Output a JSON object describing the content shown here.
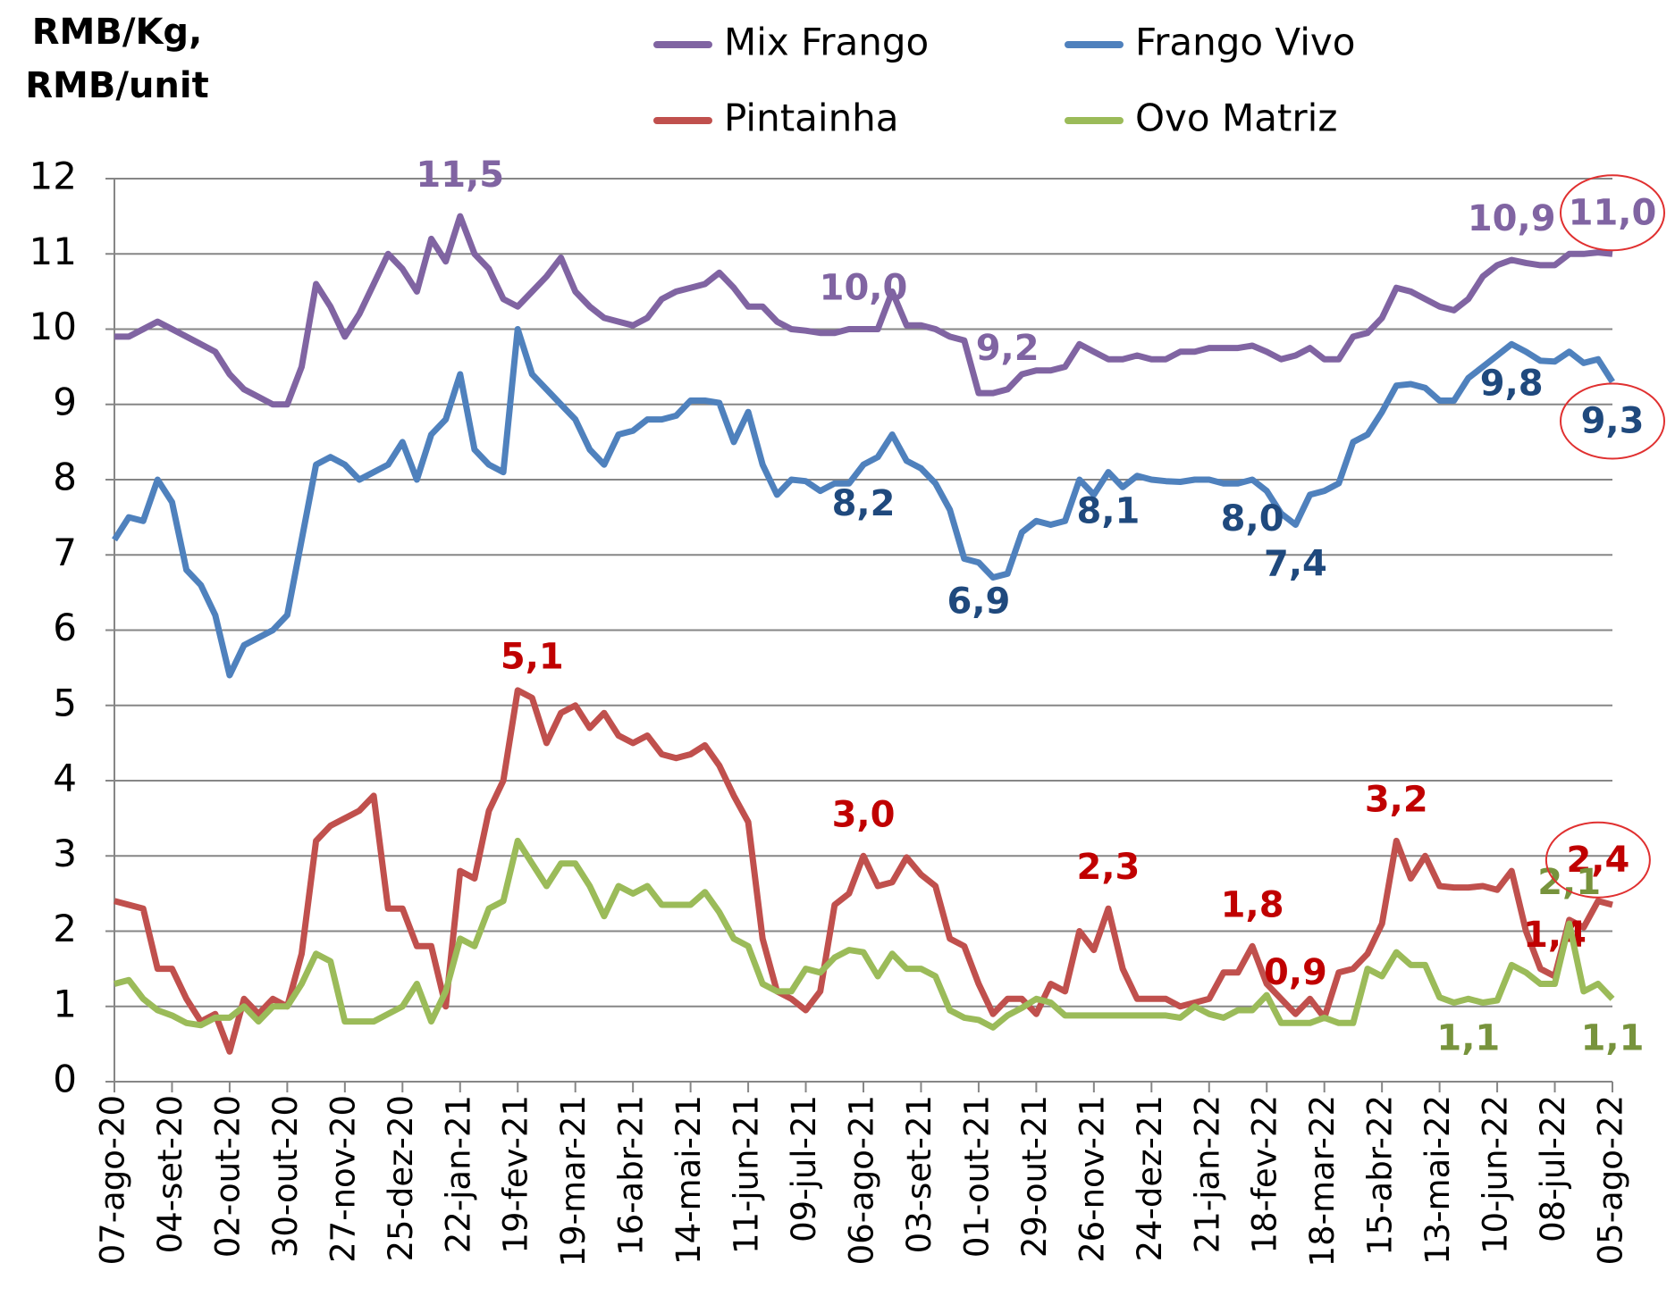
{
  "chart_data": {
    "type": "line",
    "ylabel_lines": [
      "RMB/Kg,",
      "RMB/unit"
    ],
    "ylim": [
      0,
      12
    ],
    "yticks": [
      0,
      1,
      2,
      3,
      4,
      5,
      6,
      7,
      8,
      9,
      10,
      11,
      12
    ],
    "grid": true,
    "categories": [
      "07-ago-20",
      null,
      null,
      null,
      "04-set-20",
      null,
      null,
      null,
      "02-out-20",
      null,
      null,
      null,
      "30-out-20",
      null,
      null,
      null,
      "27-nov-20",
      null,
      null,
      null,
      "25-dez-20",
      null,
      null,
      null,
      "22-jan-21",
      null,
      null,
      null,
      "19-fev-21",
      null,
      null,
      null,
      "19-mar-21",
      null,
      null,
      null,
      "16-abr-21",
      null,
      null,
      null,
      "14-mai-21",
      null,
      null,
      null,
      "11-jun-21",
      null,
      null,
      null,
      "09-jul-21",
      null,
      null,
      null,
      "06-ago-21",
      null,
      null,
      null,
      "03-set-21",
      null,
      null,
      null,
      "01-out-21",
      null,
      null,
      null,
      "29-out-21",
      null,
      null,
      null,
      "26-nov-21",
      null,
      null,
      null,
      "24-dez-21",
      null,
      null,
      null,
      "21-jan-22",
      null,
      null,
      null,
      "18-fev-22",
      null,
      null,
      null,
      "18-mar-22",
      null,
      null,
      null,
      "15-abr-22",
      null,
      null,
      null,
      "13-mai-22",
      null,
      null,
      null,
      "10-jun-22",
      null,
      null,
      null,
      "08-jul-22",
      null,
      null,
      null,
      "05-ago-22"
    ],
    "series": [
      {
        "name": "Mix Frango",
        "color": "#8064a2",
        "label_color": "#8064a2",
        "values": [
          9.9,
          9.9,
          10.0,
          10.1,
          10.0,
          9.9,
          9.8,
          9.7,
          9.4,
          9.2,
          9.1,
          9.0,
          9.0,
          9.5,
          10.6,
          10.3,
          9.9,
          10.2,
          10.6,
          11.0,
          10.8,
          10.5,
          11.2,
          10.9,
          11.5,
          11.0,
          10.8,
          10.4,
          10.3,
          10.5,
          10.7,
          10.95,
          10.5,
          10.3,
          10.15,
          10.1,
          10.05,
          10.15,
          10.4,
          10.5,
          10.55,
          10.6,
          10.75,
          10.55,
          10.3,
          10.3,
          10.1,
          10.0,
          9.98,
          9.95,
          9.95,
          10.0,
          10.0,
          10.0,
          10.5,
          10.05,
          10.05,
          10.0,
          9.9,
          9.85,
          9.15,
          9.15,
          9.2,
          9.4,
          9.45,
          9.45,
          9.5,
          9.8,
          9.7,
          9.6,
          9.6,
          9.65,
          9.6,
          9.6,
          9.7,
          9.7,
          9.75,
          9.75,
          9.75,
          9.78,
          9.7,
          9.6,
          9.65,
          9.75,
          9.6,
          9.6,
          9.9,
          9.95,
          10.15,
          10.55,
          10.5,
          10.4,
          10.3,
          10.25,
          10.4,
          10.7,
          10.85,
          10.92,
          10.88,
          10.85,
          10.85,
          11.0,
          11.0,
          11.02,
          11.0
        ],
        "value_labels": [
          null,
          null,
          null,
          null,
          null,
          null,
          null,
          null,
          null,
          null,
          null,
          null,
          null,
          null,
          null,
          null,
          null,
          null,
          null,
          null,
          null,
          null,
          null,
          null,
          "11,5",
          null,
          null,
          null,
          null,
          null,
          null,
          null,
          null,
          null,
          null,
          null,
          null,
          null,
          null,
          null,
          null,
          null,
          null,
          null,
          null,
          null,
          null,
          null,
          null,
          null,
          null,
          null,
          "10,0",
          null,
          null,
          null,
          null,
          null,
          null,
          null,
          null,
          null,
          "9,2",
          null,
          null,
          null,
          null,
          null,
          null,
          null,
          null,
          null,
          null,
          null,
          null,
          null,
          null,
          null,
          null,
          null,
          null,
          null,
          null,
          null,
          null,
          null,
          null,
          null,
          null,
          null,
          null,
          null,
          null,
          null,
          null,
          null,
          null,
          "10,9",
          null,
          null,
          null,
          null,
          null,
          null,
          "11,0"
        ]
      },
      {
        "name": "Frango Vivo",
        "color": "#4f81bd",
        "label_color": "#1f497d",
        "values": [
          7.2,
          7.5,
          7.45,
          8.0,
          7.7,
          6.8,
          6.6,
          6.2,
          5.4,
          5.8,
          5.9,
          6.0,
          6.2,
          7.2,
          8.2,
          8.3,
          8.2,
          8.0,
          8.1,
          8.2,
          8.5,
          8.0,
          8.6,
          8.8,
          9.4,
          8.4,
          8.2,
          8.1,
          10.0,
          9.4,
          9.2,
          9.0,
          8.8,
          8.4,
          8.2,
          8.6,
          8.65,
          8.8,
          8.8,
          8.85,
          9.05,
          9.05,
          9.02,
          8.5,
          8.9,
          8.2,
          7.8,
          8.0,
          7.98,
          7.85,
          7.95,
          7.95,
          8.2,
          8.3,
          8.6,
          8.25,
          8.15,
          7.95,
          7.6,
          6.95,
          6.9,
          6.7,
          6.75,
          7.3,
          7.45,
          7.4,
          7.45,
          8.0,
          7.8,
          8.1,
          7.9,
          8.05,
          8.0,
          7.98,
          7.97,
          8.0,
          8.0,
          7.95,
          7.95,
          8.0,
          7.85,
          7.55,
          7.4,
          7.8,
          7.85,
          7.95,
          8.5,
          8.6,
          8.9,
          9.25,
          9.27,
          9.22,
          9.05,
          9.05,
          9.35,
          9.5,
          9.65,
          9.8,
          9.7,
          9.58,
          9.57,
          9.7,
          9.55,
          9.6,
          9.3
        ],
        "value_labels": [
          null,
          null,
          null,
          null,
          null,
          null,
          null,
          null,
          null,
          null,
          null,
          null,
          null,
          null,
          null,
          null,
          null,
          null,
          null,
          null,
          null,
          null,
          null,
          null,
          null,
          null,
          null,
          null,
          null,
          null,
          null,
          null,
          null,
          null,
          null,
          null,
          null,
          null,
          null,
          null,
          null,
          null,
          null,
          null,
          null,
          null,
          null,
          null,
          null,
          null,
          null,
          null,
          "8,2",
          null,
          null,
          null,
          null,
          null,
          null,
          null,
          "6,9",
          null,
          null,
          null,
          null,
          null,
          null,
          null,
          null,
          "8,1",
          null,
          null,
          null,
          null,
          null,
          null,
          null,
          null,
          null,
          "8,0",
          null,
          null,
          "7,4",
          null,
          null,
          null,
          null,
          null,
          null,
          null,
          null,
          null,
          null,
          null,
          null,
          null,
          null,
          "9,8",
          null,
          null,
          null,
          null,
          null,
          null,
          "9,3"
        ]
      },
      {
        "name": "Pintainha",
        "color": "#c0504d",
        "label_color": "#c00000",
        "values": [
          2.4,
          2.35,
          2.3,
          1.5,
          1.5,
          1.1,
          0.8,
          0.9,
          0.4,
          1.1,
          0.9,
          1.1,
          1.0,
          1.7,
          3.2,
          3.4,
          3.5,
          3.6,
          3.8,
          2.3,
          2.3,
          1.8,
          1.8,
          1.0,
          2.8,
          2.7,
          3.6,
          4.0,
          5.2,
          5.1,
          4.5,
          4.9,
          5.0,
          4.7,
          4.9,
          4.6,
          4.5,
          4.6,
          4.35,
          4.3,
          4.35,
          4.47,
          4.2,
          3.8,
          3.45,
          1.9,
          1.2,
          1.1,
          0.95,
          1.2,
          2.35,
          2.5,
          3.0,
          2.6,
          2.65,
          2.98,
          2.75,
          2.6,
          1.9,
          1.8,
          1.3,
          0.9,
          1.1,
          1.1,
          0.9,
          1.3,
          1.2,
          2.0,
          1.75,
          2.3,
          1.5,
          1.1,
          1.1,
          1.1,
          1.0,
          1.05,
          1.1,
          1.45,
          1.45,
          1.8,
          1.3,
          1.1,
          0.9,
          1.1,
          0.85,
          1.45,
          1.5,
          1.7,
          2.1,
          3.2,
          2.7,
          3.0,
          2.6,
          2.58,
          2.58,
          2.6,
          2.55,
          2.8,
          2.0,
          1.5,
          1.4,
          2.15,
          2.05,
          2.4,
          2.35
        ],
        "value_labels": [
          null,
          null,
          null,
          null,
          null,
          null,
          null,
          null,
          null,
          null,
          null,
          null,
          null,
          null,
          null,
          null,
          null,
          null,
          null,
          null,
          null,
          null,
          null,
          null,
          null,
          null,
          null,
          null,
          null,
          "5,1",
          null,
          null,
          null,
          null,
          null,
          null,
          null,
          null,
          null,
          null,
          null,
          null,
          null,
          null,
          null,
          null,
          null,
          null,
          null,
          null,
          null,
          null,
          "3,0",
          null,
          null,
          null,
          null,
          null,
          null,
          null,
          null,
          null,
          null,
          null,
          null,
          null,
          null,
          null,
          null,
          "2,3",
          null,
          null,
          null,
          null,
          null,
          null,
          null,
          null,
          null,
          "1,8",
          null,
          null,
          "0,9",
          null,
          null,
          null,
          null,
          null,
          null,
          "3,2",
          null,
          null,
          null,
          null,
          null,
          null,
          null,
          null,
          null,
          null,
          "1,4",
          null,
          null,
          "2,4",
          null
        ]
      },
      {
        "name": "Ovo Matriz",
        "color": "#9bbb59",
        "label_color": "#77933c",
        "values": [
          1.3,
          1.35,
          1.1,
          0.95,
          0.88,
          0.78,
          0.75,
          0.85,
          0.85,
          1.0,
          0.8,
          1.0,
          1.0,
          1.3,
          1.7,
          1.6,
          0.8,
          0.8,
          0.8,
          0.9,
          1.0,
          1.3,
          0.8,
          1.2,
          1.9,
          1.8,
          2.3,
          2.4,
          3.2,
          2.9,
          2.6,
          2.9,
          2.9,
          2.6,
          2.2,
          2.6,
          2.5,
          2.6,
          2.35,
          2.35,
          2.35,
          2.52,
          2.25,
          1.9,
          1.8,
          1.3,
          1.2,
          1.2,
          1.5,
          1.45,
          1.65,
          1.75,
          1.72,
          1.4,
          1.7,
          1.5,
          1.5,
          1.4,
          0.95,
          0.85,
          0.82,
          0.72,
          0.88,
          0.98,
          1.1,
          1.05,
          0.88,
          0.88,
          0.88,
          0.88,
          0.88,
          0.88,
          0.88,
          0.88,
          0.85,
          1.0,
          0.9,
          0.85,
          0.95,
          0.95,
          1.15,
          0.78,
          0.78,
          0.78,
          0.85,
          0.78,
          0.78,
          1.5,
          1.4,
          1.72,
          1.55,
          1.55,
          1.12,
          1.05,
          1.1,
          1.05,
          1.08,
          1.55,
          1.45,
          1.3,
          1.3,
          2.1,
          1.2,
          1.3,
          1.1
        ],
        "value_labels": [
          null,
          null,
          null,
          null,
          null,
          null,
          null,
          null,
          null,
          null,
          null,
          null,
          null,
          null,
          null,
          null,
          null,
          null,
          null,
          null,
          null,
          null,
          null,
          null,
          null,
          null,
          null,
          null,
          null,
          null,
          null,
          null,
          null,
          null,
          null,
          null,
          null,
          null,
          null,
          null,
          null,
          null,
          null,
          null,
          null,
          null,
          null,
          null,
          null,
          null,
          null,
          null,
          null,
          null,
          null,
          null,
          null,
          null,
          null,
          null,
          null,
          null,
          null,
          null,
          null,
          null,
          null,
          null,
          null,
          null,
          null,
          null,
          null,
          null,
          null,
          null,
          null,
          null,
          null,
          null,
          null,
          null,
          null,
          null,
          null,
          null,
          null,
          null,
          null,
          null,
          null,
          null,
          null,
          null,
          "1,1",
          null,
          null,
          null,
          null,
          null,
          null,
          "2,1",
          null,
          null,
          "1,1"
        ]
      }
    ]
  }
}
